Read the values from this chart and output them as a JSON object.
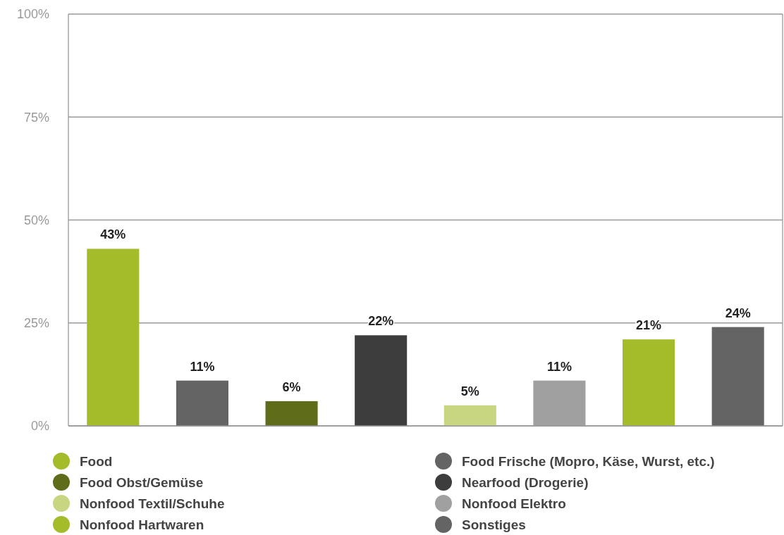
{
  "chart_data": {
    "type": "bar",
    "categories": [
      null,
      null,
      null,
      null,
      null,
      null,
      null,
      null
    ],
    "series": [
      {
        "name": "Food",
        "color": "#a4bb2a",
        "values": [
          43,
          null,
          null,
          null,
          null,
          null,
          null,
          null
        ],
        "value_labels": [
          "43%",
          null,
          null,
          null,
          null,
          null,
          null,
          null
        ]
      },
      {
        "name": "Food Frische (Mopro, Käse, Wurst, etc.)",
        "color": "#646464",
        "values": [
          null,
          11,
          null,
          null,
          null,
          null,
          null,
          null
        ],
        "value_labels": [
          null,
          "11%",
          null,
          null,
          null,
          null,
          null,
          null
        ]
      },
      {
        "name": "Food Obst/Gemüse",
        "color": "#5f6c1a",
        "values": [
          null,
          null,
          6,
          null,
          null,
          null,
          null,
          null
        ],
        "value_labels": [
          null,
          null,
          "6%",
          null,
          null,
          null,
          null,
          null
        ]
      },
      {
        "name": "Nearfood (Drogerie)",
        "color": "#3d3d3d",
        "values": [
          null,
          null,
          null,
          22,
          null,
          null,
          null,
          null
        ],
        "value_labels": [
          null,
          null,
          null,
          "22%",
          null,
          null,
          null,
          null
        ]
      },
      {
        "name": "Nonfood Textil/Schuhe",
        "color": "#c8d682",
        "values": [
          null,
          null,
          null,
          null,
          5,
          null,
          null,
          null
        ],
        "value_labels": [
          null,
          null,
          null,
          null,
          "5%",
          null,
          null,
          null
        ]
      },
      {
        "name": "Nonfood Elektro",
        "color": "#a0a0a0",
        "values": [
          null,
          null,
          null,
          null,
          null,
          11,
          null,
          null
        ],
        "value_labels": [
          null,
          null,
          null,
          null,
          null,
          "11%",
          null,
          null
        ]
      },
      {
        "name": "Nonfood Hartwaren",
        "color": "#a4bb2a",
        "values": [
          null,
          null,
          null,
          null,
          null,
          null,
          21,
          null
        ],
        "value_labels": [
          null,
          null,
          null,
          null,
          null,
          null,
          "21%",
          null
        ]
      },
      {
        "name": "Sonstiges",
        "color": "#646464",
        "values": [
          null,
          null,
          null,
          null,
          null,
          null,
          null,
          24
        ],
        "value_labels": [
          null,
          null,
          null,
          null,
          null,
          null,
          null,
          "24%"
        ]
      }
    ],
    "stacked": true,
    "ylim": [
      0,
      100
    ],
    "yticks": [
      {
        "value": 0,
        "label": "0%"
      },
      {
        "value": 25,
        "label": "25%"
      },
      {
        "value": 50,
        "label": "50%"
      },
      {
        "value": 75,
        "label": "75%"
      },
      {
        "value": 100,
        "label": "100%"
      }
    ],
    "grid": "y",
    "legend": "bottom"
  }
}
